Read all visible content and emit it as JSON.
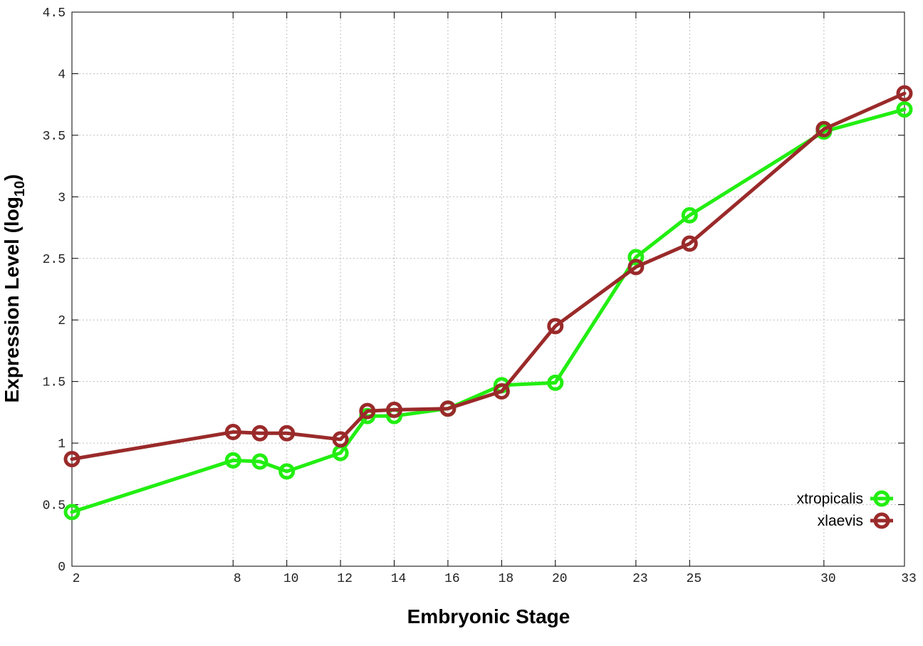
{
  "chart_data": {
    "type": "line",
    "title": "",
    "xlabel": "Embryonic Stage",
    "ylabel": "Expression Level (log",
    "ylabel_subscript": "10",
    "ylabel_suffix": ")",
    "ylim": [
      0,
      4.5
    ],
    "xlim": [
      2,
      33
    ],
    "grid": true,
    "legend_position": "bottom-right",
    "x_tick_labels": [
      "2",
      "8",
      "10",
      "12",
      "14",
      "16",
      "18",
      "20",
      "23",
      "25",
      "30",
      "33"
    ],
    "y_tick_labels": [
      "0",
      "0.5",
      "1",
      "1.5",
      "2",
      "2.5",
      "3",
      "3.5",
      "4",
      "4.5"
    ],
    "series": [
      {
        "name": "xtropicalis",
        "color": "#22ee11",
        "x": [
          2,
          8,
          9,
          10,
          12,
          13,
          14,
          16,
          18,
          20,
          23,
          25,
          30,
          33
        ],
        "values": [
          0.44,
          0.86,
          0.85,
          0.77,
          0.92,
          1.22,
          1.22,
          1.28,
          1.47,
          1.49,
          2.51,
          2.85,
          3.53,
          3.71
        ]
      },
      {
        "name": "xlaevis",
        "color": "#9a2a2a",
        "x": [
          2,
          8,
          9,
          10,
          12,
          13,
          14,
          16,
          18,
          20,
          23,
          25,
          30,
          33
        ],
        "values": [
          0.87,
          1.09,
          1.08,
          1.08,
          1.03,
          1.26,
          1.27,
          1.28,
          1.42,
          1.95,
          2.43,
          2.62,
          3.55,
          3.84
        ]
      }
    ]
  }
}
